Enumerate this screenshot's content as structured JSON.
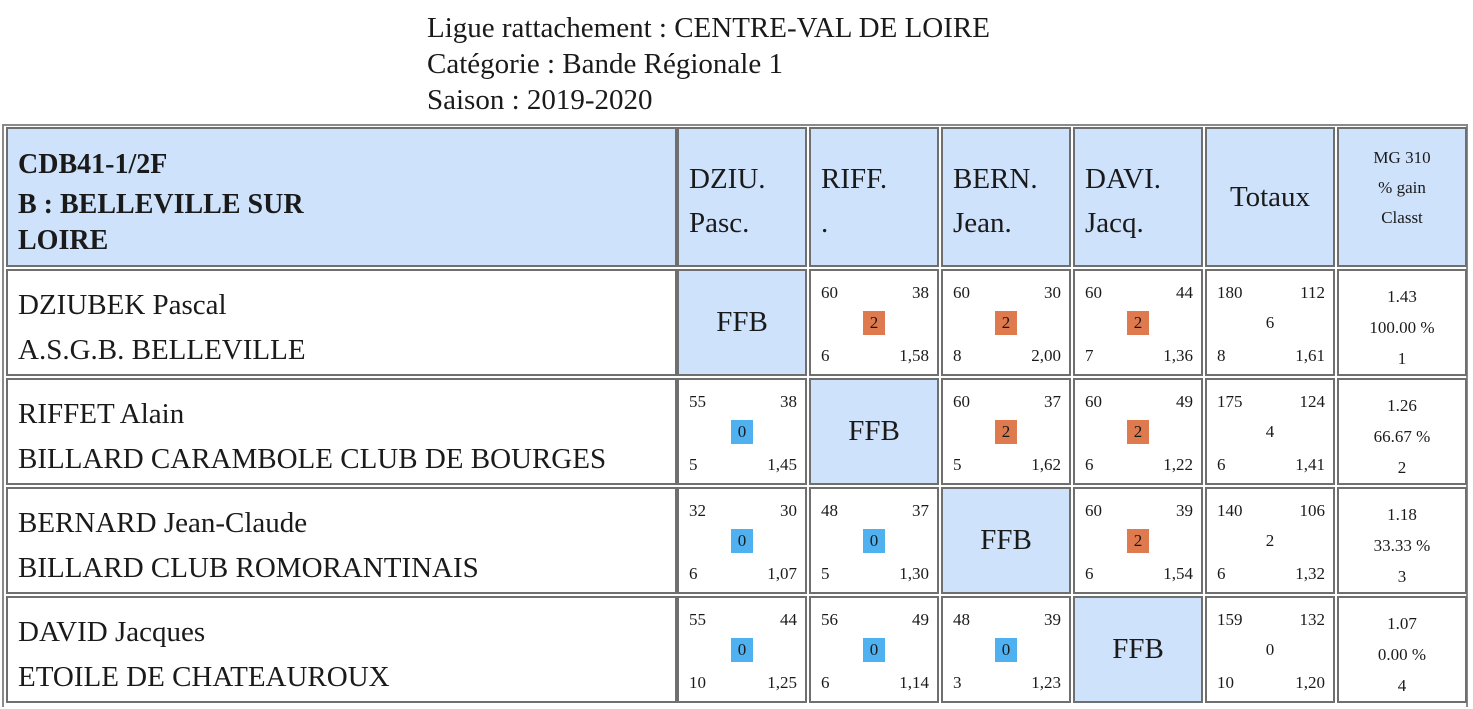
{
  "header": {
    "ligue": "Ligue rattachement : CENTRE-VAL DE LOIRE",
    "categorie": "Catégorie : Bande Régionale 1",
    "saison": "Saison : 2019-2020"
  },
  "table": {
    "group_code": "CDB41-1/2F",
    "group_name": "B : BELLEVILLE SUR LOIRE",
    "columns": [
      {
        "line1": "DZIU.",
        "line2": "Pasc."
      },
      {
        "line1": "RIFF.",
        "line2": "."
      },
      {
        "line1": "BERN.",
        "line2": "Jean."
      },
      {
        "line1": "DAVI.",
        "line2": "Jacq."
      }
    ],
    "totaux_label": "Totaux",
    "mg_header": {
      "line1": "MG 310",
      "line2": "% gain",
      "line3": "Classt"
    },
    "ffb_label": "FFB",
    "rows": [
      {
        "name": "DZIUBEK Pascal",
        "club": "A.S.G.B. BELLEVILLE",
        "matches": [
          null,
          {
            "pts_target": "60",
            "reprises": "6",
            "scored": "38",
            "avg": "1,58",
            "result": "2"
          },
          {
            "pts_target": "60",
            "reprises": "8",
            "scored": "30",
            "avg": "2,00",
            "result": "2"
          },
          {
            "pts_target": "60",
            "reprises": "7",
            "scored": "44",
            "avg": "1,36",
            "result": "2"
          }
        ],
        "totals": {
          "tl": "180",
          "tr": "112",
          "mid": "6",
          "bl": "8",
          "br": "1,61"
        },
        "mg": {
          "avg": "1.43",
          "pct": "100.00 %",
          "rank": "1"
        }
      },
      {
        "name": "RIFFET Alain",
        "club": "BILLARD CARAMBOLE CLUB DE BOURGES",
        "matches": [
          {
            "pts_target": "55",
            "reprises": "5",
            "scored": "38",
            "avg": "1,45",
            "result": "0"
          },
          null,
          {
            "pts_target": "60",
            "reprises": "5",
            "scored": "37",
            "avg": "1,62",
            "result": "2"
          },
          {
            "pts_target": "60",
            "reprises": "6",
            "scored": "49",
            "avg": "1,22",
            "result": "2"
          }
        ],
        "totals": {
          "tl": "175",
          "tr": "124",
          "mid": "4",
          "bl": "6",
          "br": "1,41"
        },
        "mg": {
          "avg": "1.26",
          "pct": "66.67 %",
          "rank": "2"
        }
      },
      {
        "name": "BERNARD Jean-Claude",
        "club": "BILLARD CLUB ROMORANTINAIS",
        "matches": [
          {
            "pts_target": "32",
            "reprises": "6",
            "scored": "30",
            "avg": "1,07",
            "result": "0"
          },
          {
            "pts_target": "48",
            "reprises": "5",
            "scored": "37",
            "avg": "1,30",
            "result": "0"
          },
          null,
          {
            "pts_target": "60",
            "reprises": "6",
            "scored": "39",
            "avg": "1,54",
            "result": "2"
          }
        ],
        "totals": {
          "tl": "140",
          "tr": "106",
          "mid": "2",
          "bl": "6",
          "br": "1,32"
        },
        "mg": {
          "avg": "1.18",
          "pct": "33.33 %",
          "rank": "3"
        }
      },
      {
        "name": "DAVID Jacques",
        "club": "ETOILE DE CHATEAUROUX",
        "matches": [
          {
            "pts_target": "55",
            "reprises": "10",
            "scored": "44",
            "avg": "1,25",
            "result": "0"
          },
          {
            "pts_target": "56",
            "reprises": "6",
            "scored": "49",
            "avg": "1,14",
            "result": "0"
          },
          {
            "pts_target": "48",
            "reprises": "3",
            "scored": "39",
            "avg": "1,23",
            "result": "0"
          },
          null
        ],
        "totals": {
          "tl": "159",
          "tr": "132",
          "mid": "0",
          "bl": "10",
          "br": "1,20"
        },
        "mg": {
          "avg": "1.07",
          "pct": "0.00 %",
          "rank": "4"
        }
      }
    ]
  },
  "colors": {
    "header_blue": "#cfe2fb",
    "win_orange": "#df7a4e",
    "loss_blue": "#4fb1f0",
    "border": "#6f6f6f"
  }
}
